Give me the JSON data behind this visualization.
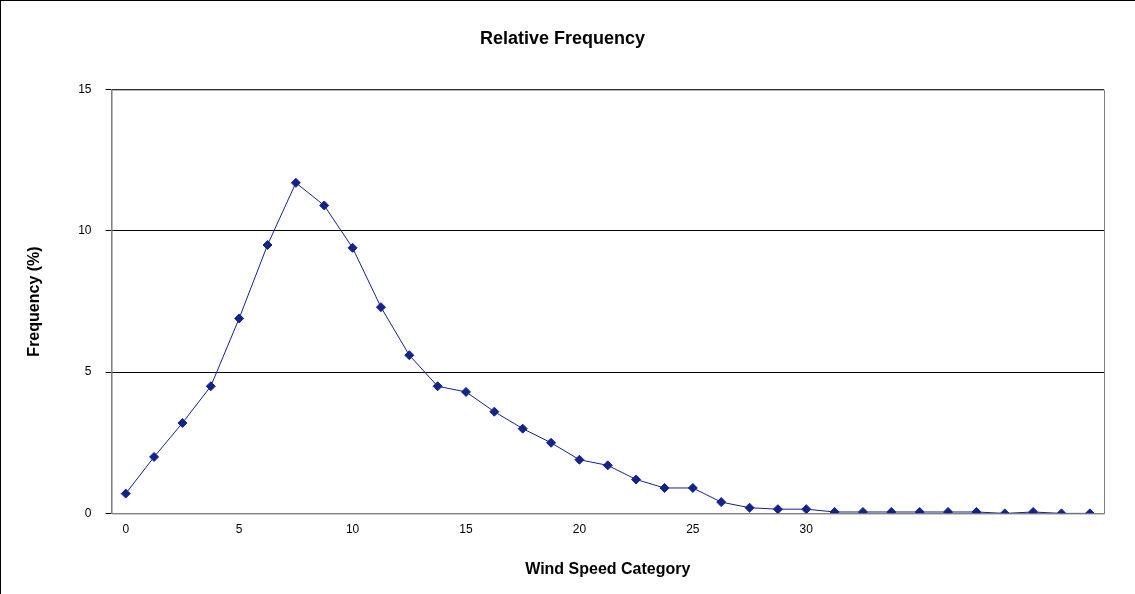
{
  "chart_data": {
    "type": "line",
    "title": "Relative Frequency",
    "xlabel": "Wind Speed Category",
    "ylabel": "Frequency (%)",
    "categories": [
      "0",
      null,
      null,
      null,
      "5",
      null,
      null,
      null,
      "10",
      null,
      null,
      null,
      "15",
      null,
      null,
      null,
      "20",
      null,
      null,
      null,
      "25",
      null,
      null,
      null,
      "30",
      null,
      null,
      null,
      null,
      null,
      null,
      null,
      null,
      null,
      null
    ],
    "series": [
      {
        "color": "#14238c",
        "values": [
          0.7,
          2.0,
          3.2,
          4.5,
          6.9,
          9.5,
          11.7,
          10.9,
          9.4,
          7.3,
          5.6,
          4.5,
          4.3,
          3.6,
          3.0,
          2.5,
          1.9,
          1.7,
          1.2,
          0.9,
          0.9,
          0.4,
          0.2,
          0.15,
          0.15,
          0.05,
          0.05,
          0.05,
          0.05,
          0.05,
          0.05,
          0,
          0.05,
          0,
          0
        ]
      }
    ],
    "ylim": [
      0,
      15
    ],
    "yticks": [
      0,
      5,
      10,
      15
    ],
    "grid": "y",
    "legend": false,
    "marker": "diamond",
    "line_style": "solid"
  }
}
